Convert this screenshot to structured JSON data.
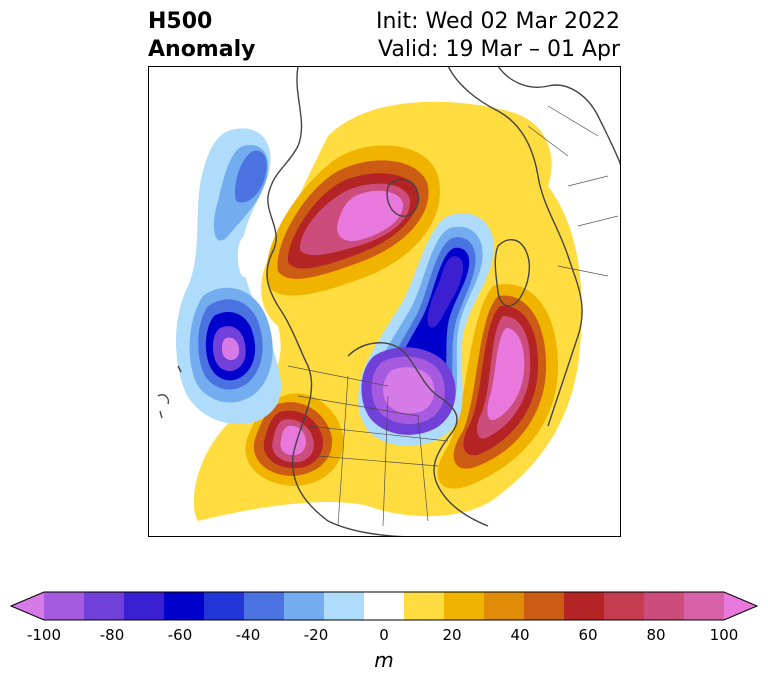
{
  "title": {
    "line1": "H500",
    "line2": "Anomaly",
    "init": "Init: Wed 02 Mar 2022",
    "valid": "Valid: 19 Mar – 01 Apr"
  },
  "colorbar": {
    "ticks": [
      "-100",
      "-80",
      "-60",
      "-40",
      "-20",
      "0",
      "20",
      "40",
      "60",
      "80",
      "100"
    ],
    "unit": "m",
    "levels": [
      -100,
      -90,
      -80,
      -70,
      -60,
      -50,
      -40,
      -30,
      -20,
      -10,
      10,
      20,
      30,
      40,
      50,
      60,
      70,
      80,
      90,
      100
    ],
    "colors": [
      "#d57ae6",
      "#a55ae0",
      "#7140d8",
      "#3a20d0",
      "#0000cc",
      "#2236d8",
      "#4a72e0",
      "#74acf0",
      "#aedcfa",
      "#ffffff",
      "#ffdc40",
      "#f0b400",
      "#e08c08",
      "#cc5c14",
      "#b42424",
      "#c43c50",
      "#cc4c7c",
      "#d862a8",
      "#e878dc"
    ]
  }
}
